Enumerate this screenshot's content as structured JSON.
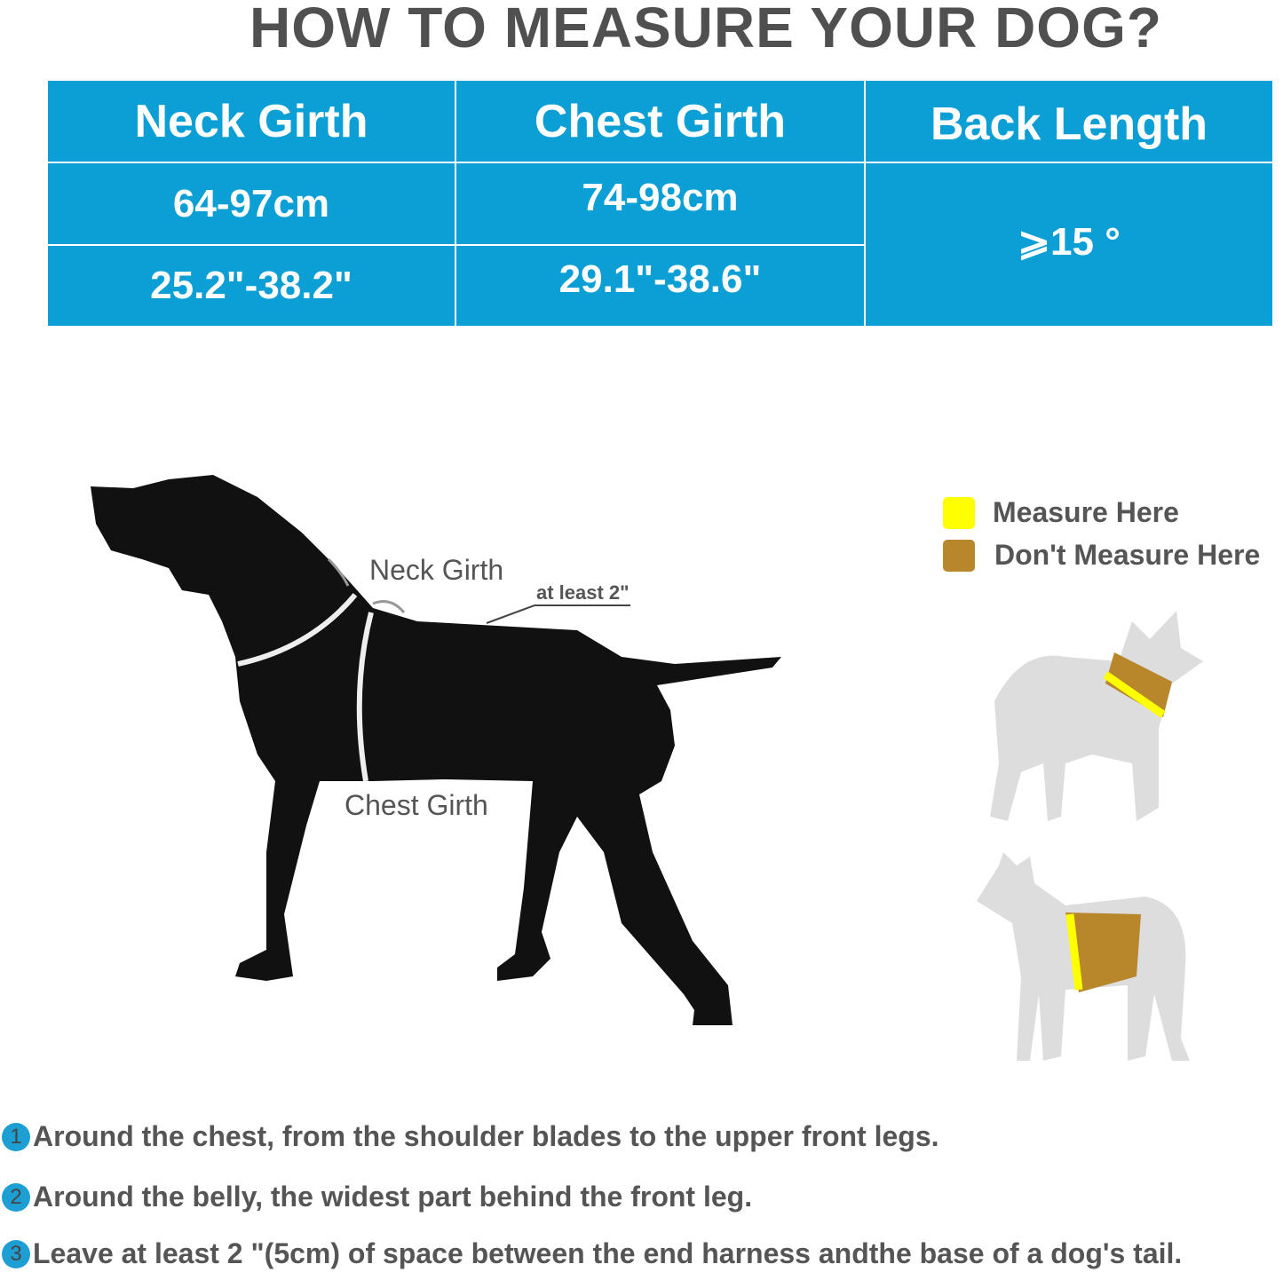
{
  "title": "HOW TO MEASURE YOUR DOG?",
  "colors": {
    "table_bg": "#0b9fd6",
    "measure_here": "#ffff00",
    "dont_measure_here": "#b8862b",
    "step_badge": "#1e9fd4"
  },
  "table": {
    "headers": [
      "Neck Girth",
      "Chest Girth",
      "Back Length"
    ],
    "rows": [
      [
        "64-97cm",
        "74-98cm"
      ],
      [
        "25.2\"-38.2\"",
        "29.1\"-38.6\""
      ]
    ],
    "back_length_value": "⩾15 °"
  },
  "diagram": {
    "neck_label": "Neck Girth",
    "chest_label": "Chest Girth",
    "gap_label": "at least 2\""
  },
  "legend": [
    {
      "label": "Measure Here",
      "color": "#ffff00"
    },
    {
      "label": "Don't Measure Here",
      "color": "#b8862b"
    }
  ],
  "steps": [
    {
      "num": "1",
      "text": "Around the chest, from the shoulder blades to the upper front legs."
    },
    {
      "num": "2",
      "text": "Around the belly, the widest part behind the front leg."
    },
    {
      "num": "3",
      "text": "Leave at least 2 \"(5cm) of space between the end harness andthe base of a dog's tail."
    }
  ]
}
